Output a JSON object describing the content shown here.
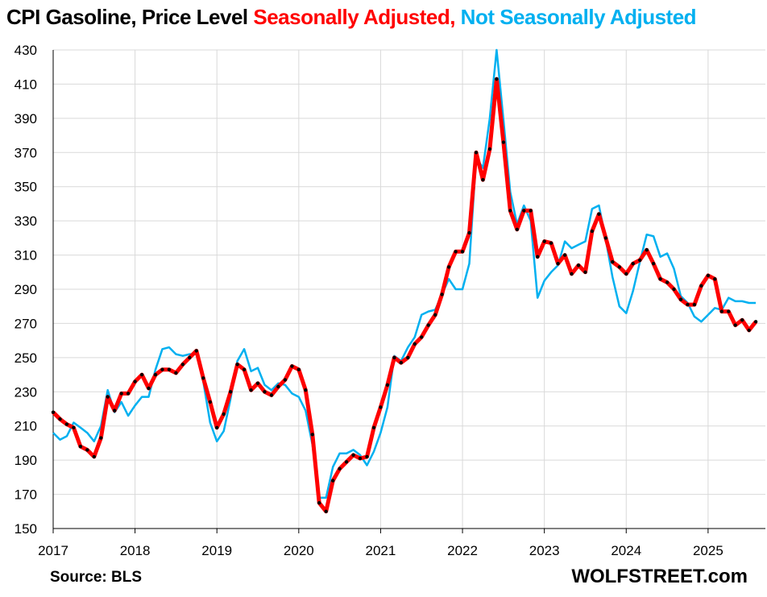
{
  "title": {
    "main": "CPI Gasoline, Price Level",
    "sa": "Seasonally Adjusted,",
    "nsa": "Not Seasonally Adjusted"
  },
  "source": "Source: BLS",
  "brand": "WOLFSTREET.com",
  "colors": {
    "sa": "#ff0000",
    "sa_markers": "#000000",
    "nsa": "#00b0f0",
    "grid": "#d9d9d9"
  },
  "chart_data": {
    "type": "line",
    "title": "CPI Gasoline, Price Level",
    "ylim": [
      150,
      430
    ],
    "yticks": [
      150,
      170,
      190,
      210,
      230,
      250,
      270,
      290,
      310,
      330,
      350,
      370,
      390,
      410,
      430
    ],
    "xlim": [
      2017,
      2025.7
    ],
    "xticks": [
      "2017",
      "2018",
      "2019",
      "2020",
      "2021",
      "2022",
      "2023",
      "2024",
      "2025"
    ],
    "grid": true,
    "x_start": "2017-01",
    "frequency": "monthly",
    "series": [
      {
        "name": "Seasonally Adjusted",
        "values": [
          218,
          214,
          211,
          209,
          198,
          196,
          192,
          203,
          227,
          219,
          229,
          229,
          236,
          240,
          232,
          240,
          243,
          243,
          241,
          246,
          250,
          254,
          238,
          224,
          209,
          217,
          230,
          246,
          243,
          231,
          235,
          230,
          228,
          233,
          237,
          245,
          243,
          231,
          205,
          165,
          160,
          178,
          185,
          189,
          193,
          191,
          192,
          209,
          221,
          234,
          250,
          247,
          250,
          258,
          262,
          269,
          275,
          287,
          303,
          312,
          312,
          323,
          370,
          354,
          372,
          413,
          376,
          336,
          325,
          336,
          336,
          309,
          318,
          317,
          305,
          310,
          299,
          304,
          300,
          324,
          334,
          320,
          306,
          303,
          299,
          305,
          307,
          313,
          305,
          296,
          294,
          290,
          284,
          281,
          281,
          292,
          298,
          296,
          277,
          277,
          269,
          272,
          266,
          271
        ]
      },
      {
        "name": "Not Seasonally Adjusted",
        "values": [
          206,
          202,
          204,
          212,
          209,
          206,
          201,
          210,
          231,
          218,
          224,
          216,
          222,
          227,
          227,
          243,
          255,
          256,
          252,
          251,
          252,
          252,
          236,
          212,
          201,
          207,
          226,
          248,
          255,
          242,
          244,
          234,
          231,
          235,
          234,
          229,
          227,
          219,
          199,
          168,
          168,
          186,
          194,
          194,
          196,
          193,
          187,
          195,
          206,
          221,
          251,
          248,
          256,
          262,
          275,
          277,
          278,
          287,
          296,
          290,
          290,
          305,
          367,
          361,
          390,
          430,
          389,
          347,
          328,
          339,
          330,
          285,
          295,
          300,
          304,
          318,
          314,
          316,
          318,
          337,
          339,
          319,
          297,
          280,
          276,
          289,
          306,
          322,
          321,
          309,
          311,
          302,
          286,
          282,
          274,
          271,
          275,
          279,
          278,
          285,
          283,
          283,
          282,
          282
        ]
      }
    ]
  }
}
